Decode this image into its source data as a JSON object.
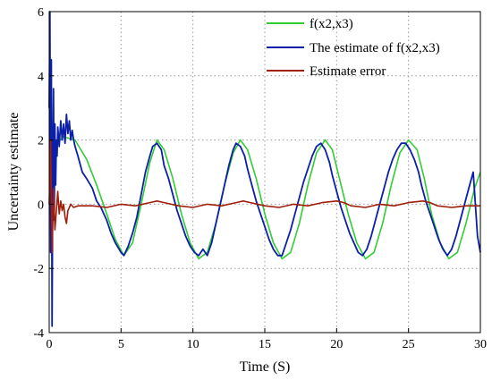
{
  "chart_data": {
    "type": "line",
    "xlabel": "Time (S)",
    "ylabel": "Uncertainty estimate",
    "xlim": [
      0,
      30
    ],
    "ylim": [
      -4,
      6
    ],
    "xticks": [
      0,
      5,
      10,
      15,
      20,
      25,
      30
    ],
    "yticks": [
      -4,
      -2,
      0,
      2,
      4,
      6
    ],
    "grid": true,
    "legend_position": "top-right",
    "series": [
      {
        "name": "f(x2,x3)",
        "color": "#33cc33",
        "x": [
          0.3,
          1.0,
          1.8,
          2.6,
          3.3,
          4.0,
          4.6,
          5.2,
          5.8,
          6.4,
          7.0,
          7.5,
          8.0,
          8.6,
          9.2,
          9.8,
          10.4,
          11.0,
          11.6,
          12.2,
          12.8,
          13.3,
          13.8,
          14.4,
          15.0,
          15.6,
          16.2,
          16.8,
          17.4,
          18.0,
          18.6,
          19.2,
          19.7,
          20.2,
          20.8,
          21.4,
          22.0,
          22.6,
          23.2,
          23.8,
          24.4,
          25.0,
          25.6,
          26.1,
          26.6,
          27.2,
          27.8,
          28.4,
          29.0,
          29.6,
          30.0
        ],
        "y": [
          1.8,
          2.1,
          2.0,
          1.4,
          0.6,
          -0.3,
          -1.1,
          -1.6,
          -1.2,
          0.0,
          1.3,
          2.0,
          1.7,
          0.8,
          -0.3,
          -1.2,
          -1.7,
          -1.5,
          -0.6,
          0.6,
          1.6,
          2.0,
          1.7,
          0.8,
          -0.3,
          -1.2,
          -1.7,
          -1.5,
          -0.6,
          0.6,
          1.6,
          2.0,
          1.7,
          0.8,
          -0.3,
          -1.2,
          -1.7,
          -1.5,
          -0.6,
          0.6,
          1.6,
          2.0,
          1.7,
          0.8,
          -0.3,
          -1.2,
          -1.7,
          -1.5,
          -0.6,
          0.5,
          1.0
        ]
      },
      {
        "name": "The estimate of f(x2,x3)",
        "color": "#0b1fa8",
        "x": [
          0.0,
          0.05,
          0.1,
          0.15,
          0.2,
          0.25,
          0.3,
          0.35,
          0.4,
          0.45,
          0.5,
          0.55,
          0.6,
          0.7,
          0.8,
          0.9,
          1.0,
          1.1,
          1.2,
          1.3,
          1.4,
          1.5,
          1.6,
          1.7,
          1.8,
          2.0,
          2.3,
          2.6,
          3.0,
          3.3,
          3.6,
          4.0,
          4.3,
          4.6,
          5.0,
          5.2,
          5.5,
          5.8,
          6.1,
          6.4,
          6.7,
          7.0,
          7.2,
          7.5,
          7.8,
          8.0,
          8.3,
          8.6,
          8.9,
          9.2,
          9.5,
          9.8,
          10.1,
          10.4,
          10.7,
          11.0,
          11.3,
          11.6,
          11.9,
          12.2,
          12.5,
          12.8,
          13.0,
          13.3,
          13.6,
          13.8,
          14.1,
          14.4,
          14.7,
          15.0,
          15.3,
          15.6,
          15.9,
          16.2,
          16.5,
          16.8,
          17.1,
          17.4,
          17.7,
          18.0,
          18.3,
          18.6,
          18.9,
          19.2,
          19.5,
          19.7,
          20.0,
          20.3,
          20.6,
          20.9,
          21.2,
          21.5,
          21.8,
          22.1,
          22.4,
          22.7,
          23.0,
          23.3,
          23.6,
          23.9,
          24.2,
          24.5,
          24.8,
          25.1,
          25.4,
          25.7,
          25.9,
          26.2,
          26.5,
          26.8,
          27.1,
          27.4,
          27.7,
          28.0,
          28.3,
          28.6,
          28.9,
          29.2,
          29.5,
          29.8,
          30.0
        ],
        "y": [
          3.0,
          6.0,
          -1.5,
          4.5,
          -3.8,
          1.0,
          3.6,
          -0.5,
          2.5,
          0.6,
          2.0,
          1.5,
          2.4,
          1.8,
          2.6,
          2.0,
          2.5,
          1.9,
          2.8,
          2.2,
          2.6,
          2.0,
          2.3,
          2.0,
          1.8,
          1.5,
          1.0,
          0.8,
          0.5,
          0.1,
          -0.1,
          -0.5,
          -0.9,
          -1.2,
          -1.5,
          -1.6,
          -1.3,
          -0.9,
          -0.4,
          0.3,
          1.0,
          1.5,
          1.8,
          1.9,
          1.7,
          1.2,
          0.8,
          0.3,
          -0.2,
          -0.6,
          -1.0,
          -1.3,
          -1.5,
          -1.6,
          -1.4,
          -1.6,
          -1.2,
          -0.6,
          0.0,
          0.6,
          1.2,
          1.7,
          1.9,
          1.8,
          1.5,
          1.1,
          0.6,
          0.1,
          -0.3,
          -0.7,
          -1.1,
          -1.4,
          -1.6,
          -1.6,
          -1.2,
          -0.8,
          -0.3,
          0.2,
          0.7,
          1.1,
          1.5,
          1.8,
          1.9,
          1.7,
          1.3,
          0.9,
          0.4,
          -0.1,
          -0.5,
          -0.9,
          -1.2,
          -1.5,
          -1.6,
          -1.4,
          -1.0,
          -0.5,
          0.0,
          0.5,
          1.0,
          1.4,
          1.7,
          1.9,
          1.9,
          1.7,
          1.4,
          1.0,
          0.6,
          0.1,
          -0.3,
          -0.7,
          -1.1,
          -1.4,
          -1.6,
          -1.4,
          -1.0,
          -0.5,
          0.0,
          0.5,
          1.0,
          -1.0,
          -1.5
        ]
      },
      {
        "name": "Estimate error",
        "color": "#a01e0a",
        "x": [
          0.0,
          0.1,
          0.2,
          0.3,
          0.4,
          0.5,
          0.6,
          0.7,
          0.8,
          0.9,
          1.0,
          1.1,
          1.2,
          1.3,
          1.4,
          1.5,
          1.7,
          2.0,
          3.0,
          4.0,
          5.0,
          6.0,
          7.0,
          7.5,
          8.0,
          9.0,
          10.0,
          11.0,
          12.0,
          13.0,
          13.5,
          14.0,
          15.0,
          16.0,
          17.0,
          18.0,
          19.0,
          20.0,
          20.5,
          21.0,
          22.0,
          23.0,
          24.0,
          25.0,
          26.0,
          26.5,
          27.0,
          28.0,
          29.0,
          30.0
        ],
        "y": [
          0.0,
          2.0,
          -1.5,
          0.5,
          -0.8,
          -0.2,
          0.4,
          -0.3,
          0.1,
          -0.2,
          0.0,
          -0.4,
          -0.6,
          -0.2,
          -0.1,
          0.0,
          -0.1,
          -0.05,
          -0.05,
          -0.1,
          0.0,
          -0.05,
          0.05,
          0.1,
          0.05,
          -0.05,
          -0.1,
          0.0,
          -0.05,
          0.05,
          0.1,
          0.05,
          -0.05,
          -0.1,
          0.0,
          -0.05,
          0.05,
          0.1,
          0.05,
          -0.05,
          -0.1,
          0.0,
          -0.05,
          0.05,
          0.1,
          0.05,
          -0.05,
          -0.1,
          -0.05,
          -0.05
        ]
      }
    ]
  }
}
